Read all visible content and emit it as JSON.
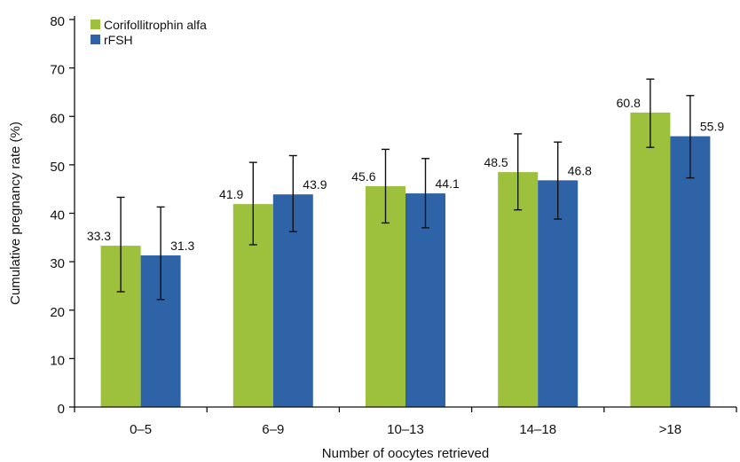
{
  "chart_data": {
    "type": "bar",
    "xlabel": "Number of oocytes retrieved",
    "ylabel": "Cumulative pregnancy rate (%)",
    "ylim": [
      0,
      80
    ],
    "yticks": [
      0,
      10,
      20,
      30,
      40,
      50,
      60,
      70,
      80
    ],
    "grid": false,
    "legend_position": "top-left",
    "categories": [
      "0–5",
      "6–9",
      "10–13",
      "14–18",
      ">18"
    ],
    "series": [
      {
        "name": "Corifollitrophin alfa",
        "color": "#9dc13c",
        "values": [
          33.3,
          41.9,
          45.6,
          48.5,
          60.8
        ],
        "labels": [
          "33.3",
          "41.9",
          "45.6",
          "48.5",
          "60.8"
        ],
        "error_low": [
          23.8,
          33.5,
          38.0,
          40.7,
          53.6
        ],
        "error_high": [
          43.3,
          50.5,
          53.2,
          56.4,
          67.7
        ]
      },
      {
        "name": "rFSH",
        "color": "#2f63a8",
        "values": [
          31.3,
          43.9,
          44.1,
          46.8,
          55.9
        ],
        "labels": [
          "31.3",
          "43.9",
          "44.1",
          "46.8",
          "55.9"
        ],
        "error_low": [
          22.2,
          36.2,
          37.0,
          38.8,
          47.3
        ],
        "error_high": [
          41.3,
          51.9,
          51.3,
          54.7,
          64.3
        ]
      }
    ]
  }
}
